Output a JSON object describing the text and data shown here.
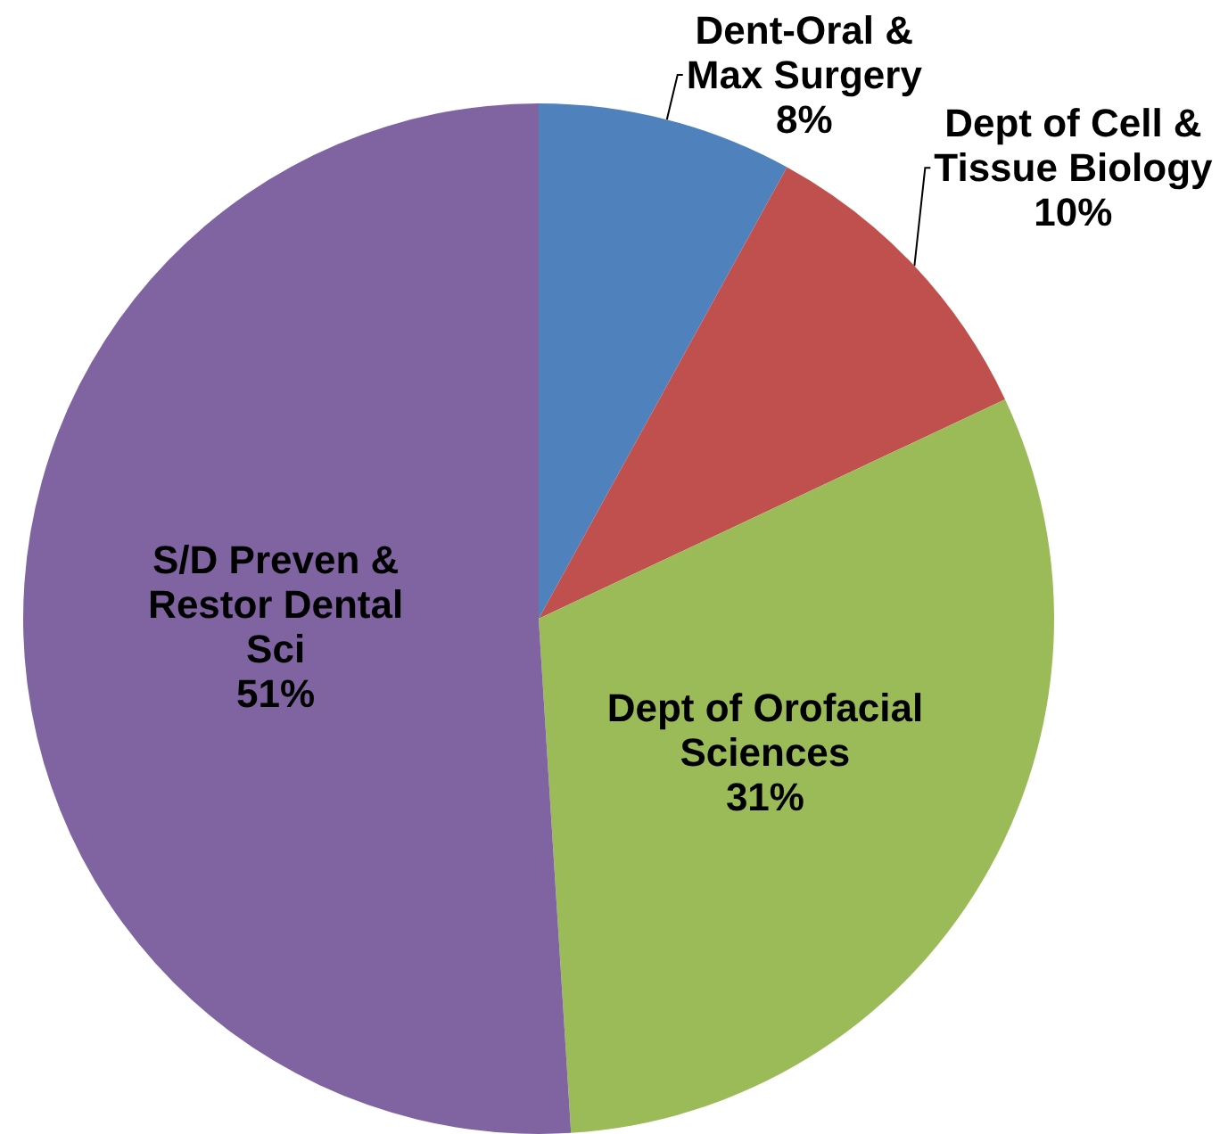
{
  "chart_data": {
    "type": "pie",
    "categories": [
      "Dent-Oral &\nMax Surgery",
      "Dept of Cell &\nTissue Biology",
      "Dept of Orofacial\nSciences",
      "S/D Preven &\nRestor Dental\nSci"
    ],
    "values": [
      8,
      10,
      31,
      51
    ],
    "value_labels": [
      "8%",
      "10%",
      "31%",
      "51%"
    ],
    "colors": [
      "#4f81bd",
      "#c0504d",
      "#9bbb59",
      "#8064a2"
    ]
  }
}
